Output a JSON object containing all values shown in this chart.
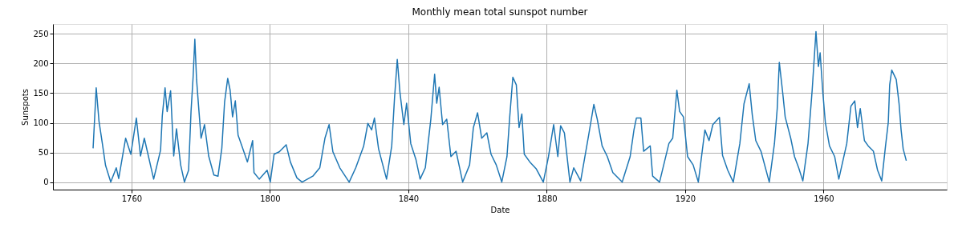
{
  "chart_data": {
    "type": "line",
    "title": "Monthly mean total sunspot number",
    "xlabel": "Date",
    "ylabel": "Sunspots",
    "xlim": [
      1737.3,
      1995.6
    ],
    "ylim": [
      -12.7,
      266.7
    ],
    "xticks": [
      1760,
      1800,
      1840,
      1880,
      1920,
      1960
    ],
    "yticks": [
      0,
      50,
      100,
      150,
      200,
      250
    ],
    "grid": true,
    "series": [
      {
        "color": "#1f77b4",
        "x": [
          1748.9,
          1749.8,
          1750.6,
          1751.6,
          1752.5,
          1754.0,
          1755.6,
          1756.3,
          1758.3,
          1759.8,
          1761.4,
          1762.6,
          1763.7,
          1766.4,
          1768.4,
          1768.9,
          1769.7,
          1770.3,
          1771.3,
          1772.2,
          1773.0,
          1774.2,
          1775.3,
          1776.5,
          1777.2,
          1777.8,
          1778.3,
          1778.8,
          1779.5,
          1780.1,
          1781.1,
          1782.3,
          1783.8,
          1785.0,
          1786.1,
          1786.9,
          1787.8,
          1788.5,
          1789.2,
          1790.0,
          1790.8,
          1791.9,
          1793.5,
          1795.0,
          1795.4,
          1796.9,
          1799.2,
          1800.1,
          1801.2,
          1802.7,
          1804.7,
          1805.9,
          1807.8,
          1809.3,
          1812.4,
          1814.4,
          1815.9,
          1817.1,
          1818.2,
          1820.2,
          1822.9,
          1824.8,
          1827.1,
          1828.3,
          1829.4,
          1830.2,
          1831.4,
          1833.7,
          1835.2,
          1836.0,
          1836.8,
          1837.6,
          1838.7,
          1839.5,
          1840.7,
          1842.2,
          1843.4,
          1844.9,
          1846.5,
          1847.6,
          1848.2,
          1848.9,
          1849.9,
          1851.1,
          1852.3,
          1853.8,
          1855.7,
          1857.7,
          1858.8,
          1860.0,
          1861.2,
          1862.7,
          1863.9,
          1865.4,
          1867.0,
          1868.5,
          1869.3,
          1870.2,
          1871.2,
          1872.0,
          1872.8,
          1873.5,
          1875.1,
          1877.0,
          1879.0,
          1880.5,
          1882.0,
          1883.2,
          1884.0,
          1885.1,
          1886.7,
          1887.8,
          1889.8,
          1892.1,
          1893.6,
          1894.6,
          1896.0,
          1897.5,
          1899.1,
          1901.8,
          1904.1,
          1905.2,
          1905.9,
          1907.2,
          1908.0,
          1909.9,
          1910.6,
          1912.6,
          1915.3,
          1916.4,
          1917.6,
          1918.4,
          1919.5,
          1920.7,
          1922.3,
          1923.8,
          1925.7,
          1926.9,
          1928.0,
          1929.9,
          1930.8,
          1932.3,
          1933.9,
          1935.8,
          1937.0,
          1938.5,
          1939.4,
          1940.4,
          1941.9,
          1944.3,
          1945.8,
          1946.6,
          1947.2,
          1948.2,
          1948.9,
          1950.5,
          1951.6,
          1952.8,
          1954.0,
          1955.5,
          1956.7,
          1957.8,
          1958.5,
          1959.0,
          1959.8,
          1960.5,
          1961.7,
          1963.2,
          1964.4,
          1966.7,
          1967.9,
          1969.0,
          1969.8,
          1970.6,
          1971.8,
          1972.9,
          1974.4,
          1975.6,
          1976.8,
          1977.9,
          1978.7,
          1979.1,
          1979.7,
          1981.0,
          1981.8,
          1982.4,
          1983.0,
          1983.9
        ],
        "values": [
          57,
          159,
          103,
          64,
          28,
          0,
          24,
          6,
          74,
          47,
          108,
          44,
          74,
          5,
          54,
          112,
          159,
          119,
          154,
          44,
          90,
          29,
          0,
          20,
          119,
          177,
          241,
          173,
          119,
          74,
          97,
          44,
          12,
          10,
          57,
          135,
          175,
          155,
          110,
          137,
          79,
          61,
          34,
          70,
          16,
          5,
          20,
          0,
          47,
          51,
          63,
          34,
          7,
          0,
          10,
          24,
          74,
          97,
          51,
          24,
          0,
          24,
          61,
          99,
          88,
          108,
          56,
          5,
          61,
          141,
          207,
          150,
          97,
          133,
          65,
          38,
          5,
          24,
          106,
          182,
          133,
          160,
          97,
          106,
          43,
          52,
          0,
          29,
          92,
          117,
          74,
          83,
          47,
          29,
          0,
          43,
          110,
          177,
          164,
          92,
          115,
          47,
          34,
          22,
          0,
          43,
          97,
          43,
          95,
          83,
          0,
          24,
          2,
          79,
          131,
          106,
          61,
          43,
          16,
          0,
          43,
          88,
          108,
          108,
          52,
          61,
          10,
          0,
          65,
          74,
          155,
          119,
          110,
          43,
          29,
          0,
          88,
          70,
          97,
          109,
          45,
          20,
          0,
          65,
          132,
          166,
          113,
          70,
          52,
          0,
          65,
          124,
          202,
          150,
          110,
          74,
          43,
          24,
          2,
          65,
          155,
          254,
          195,
          218,
          150,
          101,
          61,
          43,
          5,
          65,
          128,
          137,
          92,
          124,
          70,
          61,
          52,
          20,
          2,
          61,
          101,
          164,
          189,
          173,
          133,
          88,
          56,
          36
        ]
      }
    ]
  }
}
